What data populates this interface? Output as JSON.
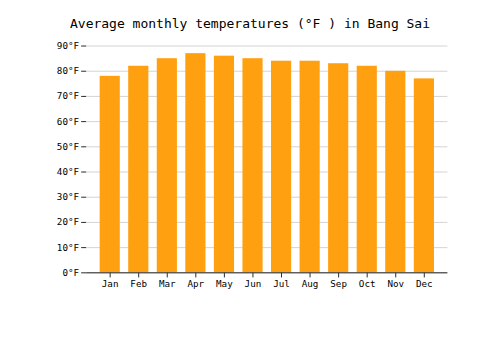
{
  "chart_data": {
    "type": "bar",
    "title": "Average monthly temperatures (°F ) in Bang Sai",
    "categories": [
      "Jan",
      "Feb",
      "Mar",
      "Apr",
      "May",
      "Jun",
      "Jul",
      "Aug",
      "Sep",
      "Oct",
      "Nov",
      "Dec"
    ],
    "values": [
      78,
      82,
      85,
      87,
      86,
      85,
      84,
      84,
      83,
      82,
      80,
      77
    ],
    "color": "#FFA010",
    "ylim": [
      0,
      90
    ],
    "yticks": [
      {
        "value": 0,
        "label": "0°F"
      },
      {
        "value": 10,
        "label": "10°F"
      },
      {
        "value": 20,
        "label": "20°F"
      },
      {
        "value": 30,
        "label": "30°F"
      },
      {
        "value": 40,
        "label": "40°F"
      },
      {
        "value": 50,
        "label": "50°F"
      },
      {
        "value": 60,
        "label": "60°F"
      },
      {
        "value": 70,
        "label": "70°F"
      },
      {
        "value": 80,
        "label": "80°F"
      },
      {
        "value": 90,
        "label": "90°F"
      }
    ],
    "grid": true
  }
}
